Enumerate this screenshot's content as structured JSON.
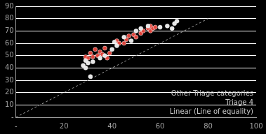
{
  "chart_data": {
    "type": "scatter",
    "xlim": [
      0,
      100
    ],
    "xticks": [
      {
        "value": 0,
        "label": "-"
      },
      20,
      40,
      60,
      80,
      100
    ],
    "ylim": [
      0,
      90
    ],
    "yticks": [
      {
        "value": 0,
        "label": "-"
      },
      10,
      20,
      30,
      40,
      50,
      60,
      70,
      80,
      90
    ],
    "grid": "y",
    "legend": "lower right",
    "series": [
      {
        "name": "Other Triage categories",
        "color": "#e6e6e6",
        "marker": "circle",
        "x": [
          28,
          29,
          30,
          31,
          29,
          32,
          35,
          37,
          40,
          41,
          42,
          45,
          48,
          50,
          52,
          55,
          60,
          63,
          65,
          66,
          67
        ],
        "values": [
          42,
          40,
          44,
          33,
          46,
          45,
          48,
          50,
          55,
          61,
          58,
          65,
          62,
          70,
          72,
          74,
          73,
          74,
          72,
          76,
          78
        ]
      },
      {
        "name": "Triage 4",
        "color": "#e0453c",
        "marker": "circle",
        "x": [
          29,
          30,
          31,
          32,
          33,
          34,
          35,
          36,
          37,
          38,
          39,
          42,
          43,
          45,
          46,
          47,
          49,
          50,
          52,
          53,
          55,
          56,
          56,
          57,
          58
        ],
        "values": [
          49,
          48,
          52,
          49,
          55,
          50,
          53,
          51,
          56,
          48,
          52,
          62,
          60,
          60,
          63,
          66,
          67,
          65,
          68,
          70,
          72,
          74,
          70,
          72,
          73
        ]
      },
      {
        "name": "Linear (Line of equality)",
        "color": "#9a9a9a",
        "type": "line",
        "line_style": "dashed",
        "x": [
          0,
          80
        ],
        "values": [
          0,
          80
        ]
      }
    ]
  }
}
